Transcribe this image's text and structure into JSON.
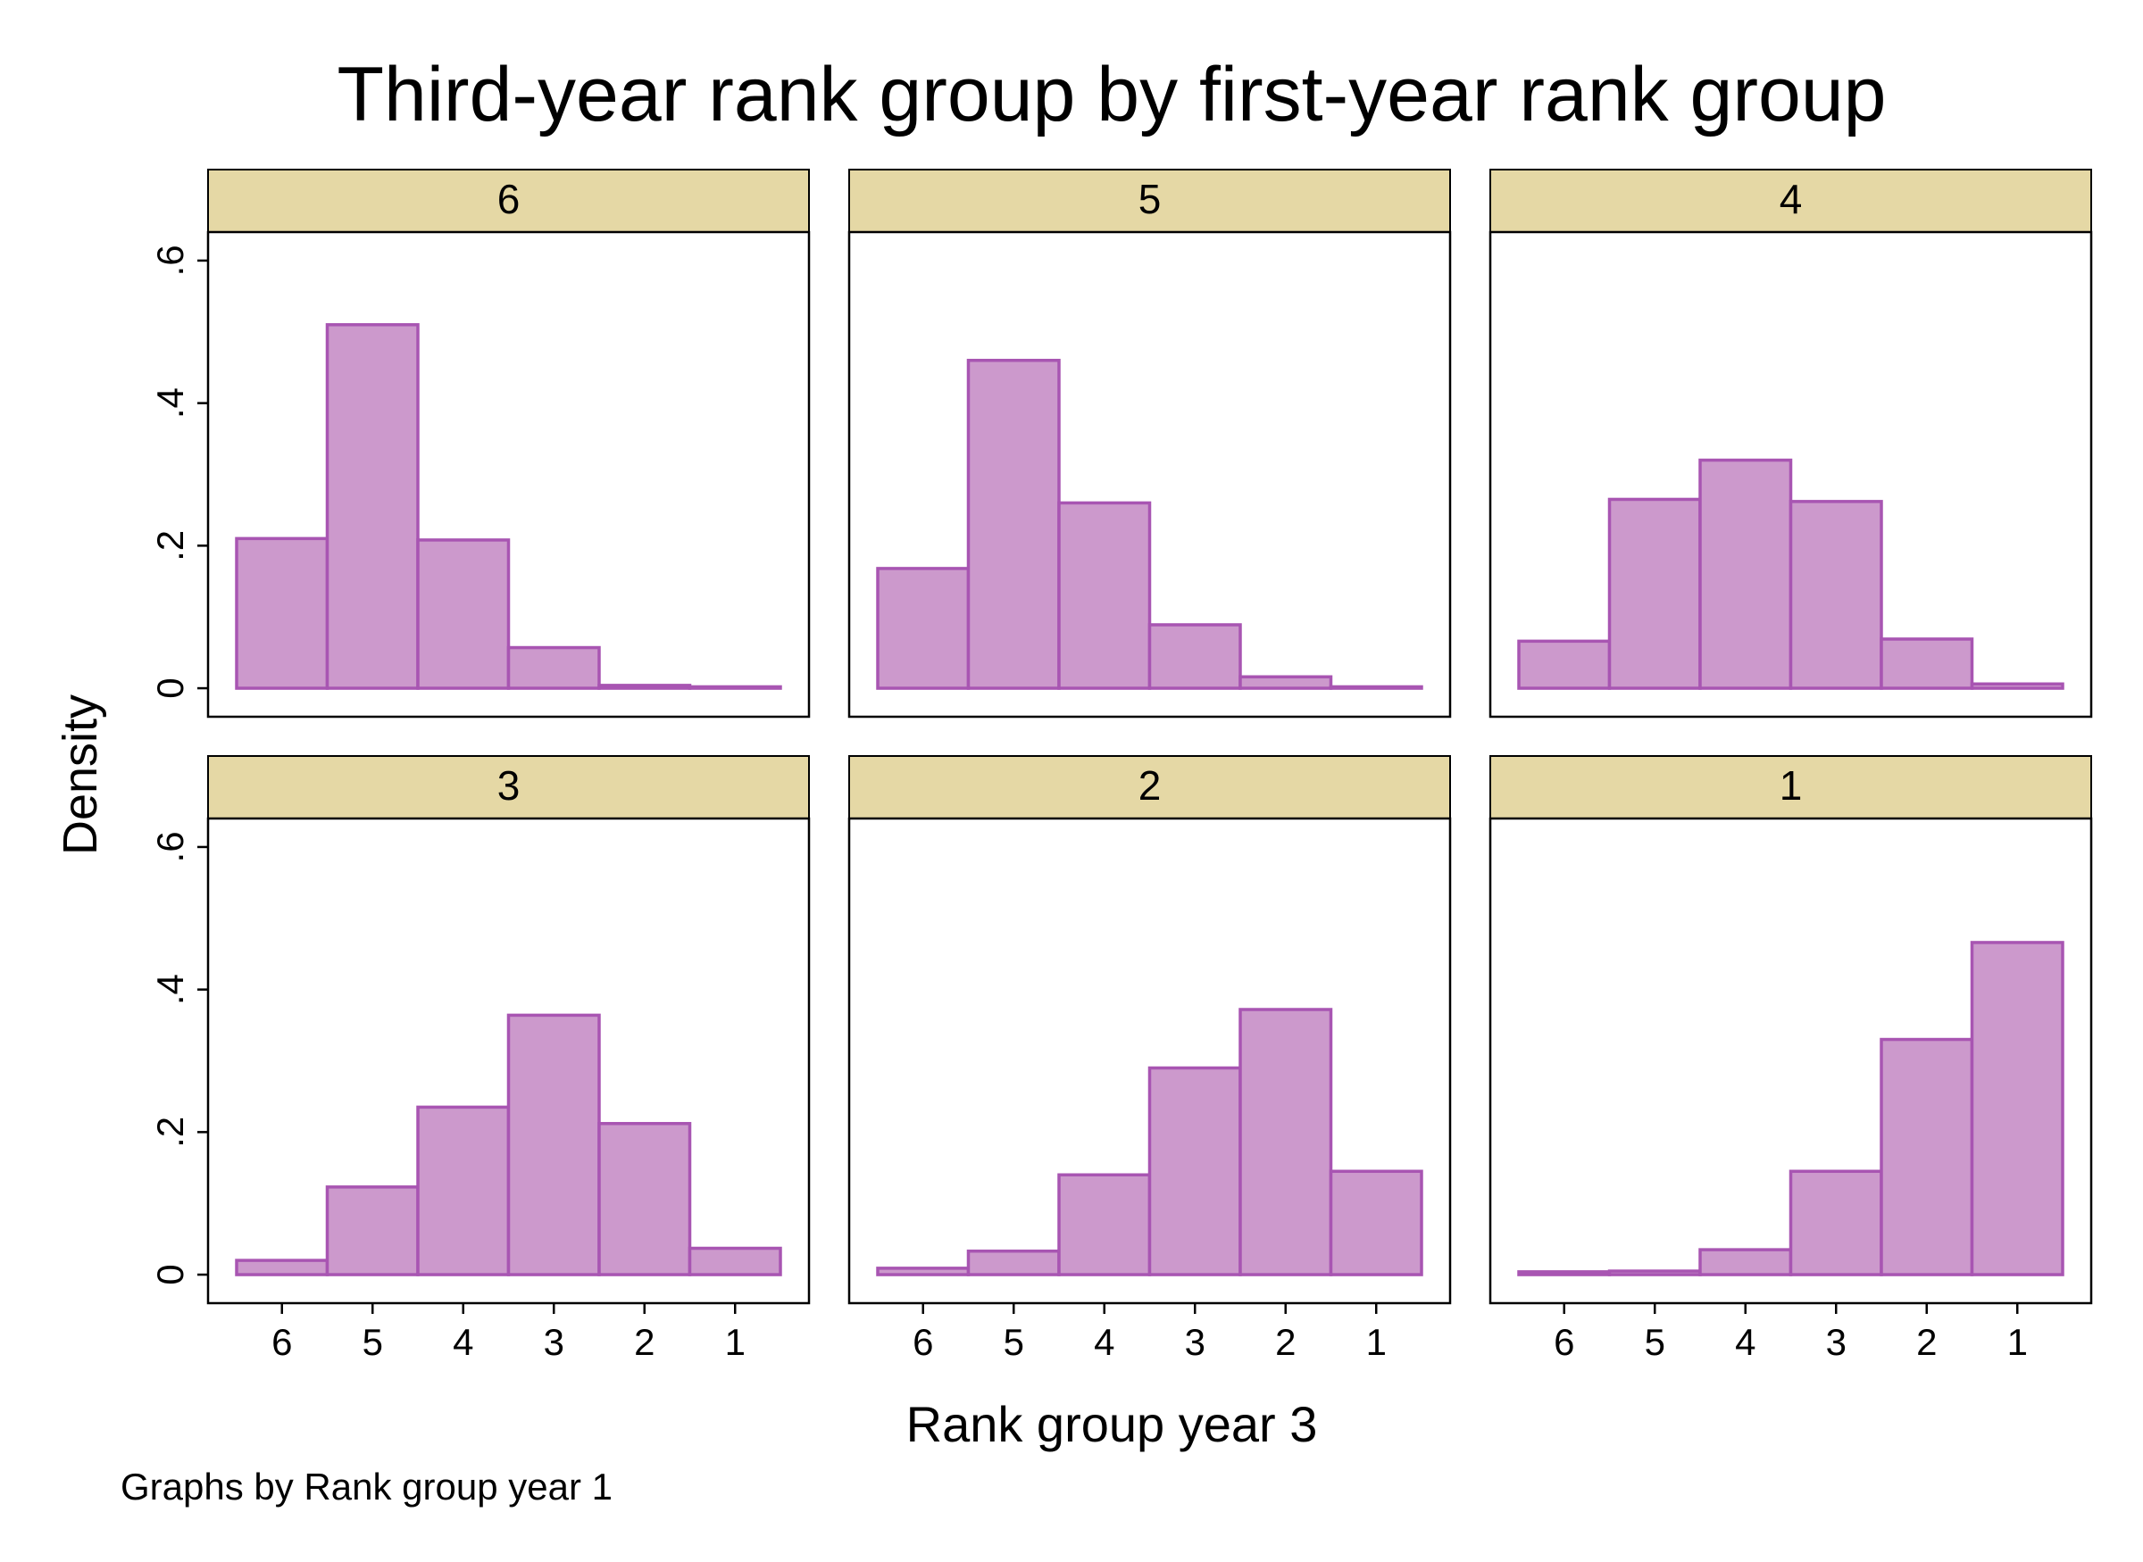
{
  "chart_data": {
    "type": "bar",
    "title": "Third-year rank group by first-year rank group",
    "xlabel": "Rank group year 3",
    "ylabel": "Density",
    "note": "Graphs by Rank group year 1",
    "categories": [
      "6",
      "5",
      "4",
      "3",
      "2",
      "1"
    ],
    "yticks": [
      {
        "value": 0,
        "label": "0"
      },
      {
        "value": 0.2,
        "label": ".2"
      },
      {
        "value": 0.4,
        "label": ".4"
      },
      {
        "value": 0.6,
        "label": ".6"
      }
    ],
    "ylim": [
      -0.04,
      0.64
    ],
    "grid": false,
    "panels": [
      {
        "label": "6",
        "values": [
          0.21,
          0.51,
          0.208,
          0.057,
          0.004,
          0.002
        ]
      },
      {
        "label": "5",
        "values": [
          0.168,
          0.46,
          0.26,
          0.089,
          0.016,
          0.002
        ]
      },
      {
        "label": "4",
        "values": [
          0.066,
          0.265,
          0.32,
          0.262,
          0.069,
          0.006
        ]
      },
      {
        "label": "3",
        "values": [
          0.02,
          0.123,
          0.235,
          0.364,
          0.212,
          0.037
        ]
      },
      {
        "label": "2",
        "values": [
          0.009,
          0.033,
          0.14,
          0.29,
          0.372,
          0.145
        ]
      },
      {
        "label": "1",
        "values": [
          0.004,
          0.005,
          0.035,
          0.145,
          0.33,
          0.466
        ]
      }
    ],
    "colors": {
      "bar_fill": "#CC99CC",
      "bar_edge": "#A855B2",
      "strip_fill": "#E5D8A5",
      "frame": "#000000"
    }
  }
}
